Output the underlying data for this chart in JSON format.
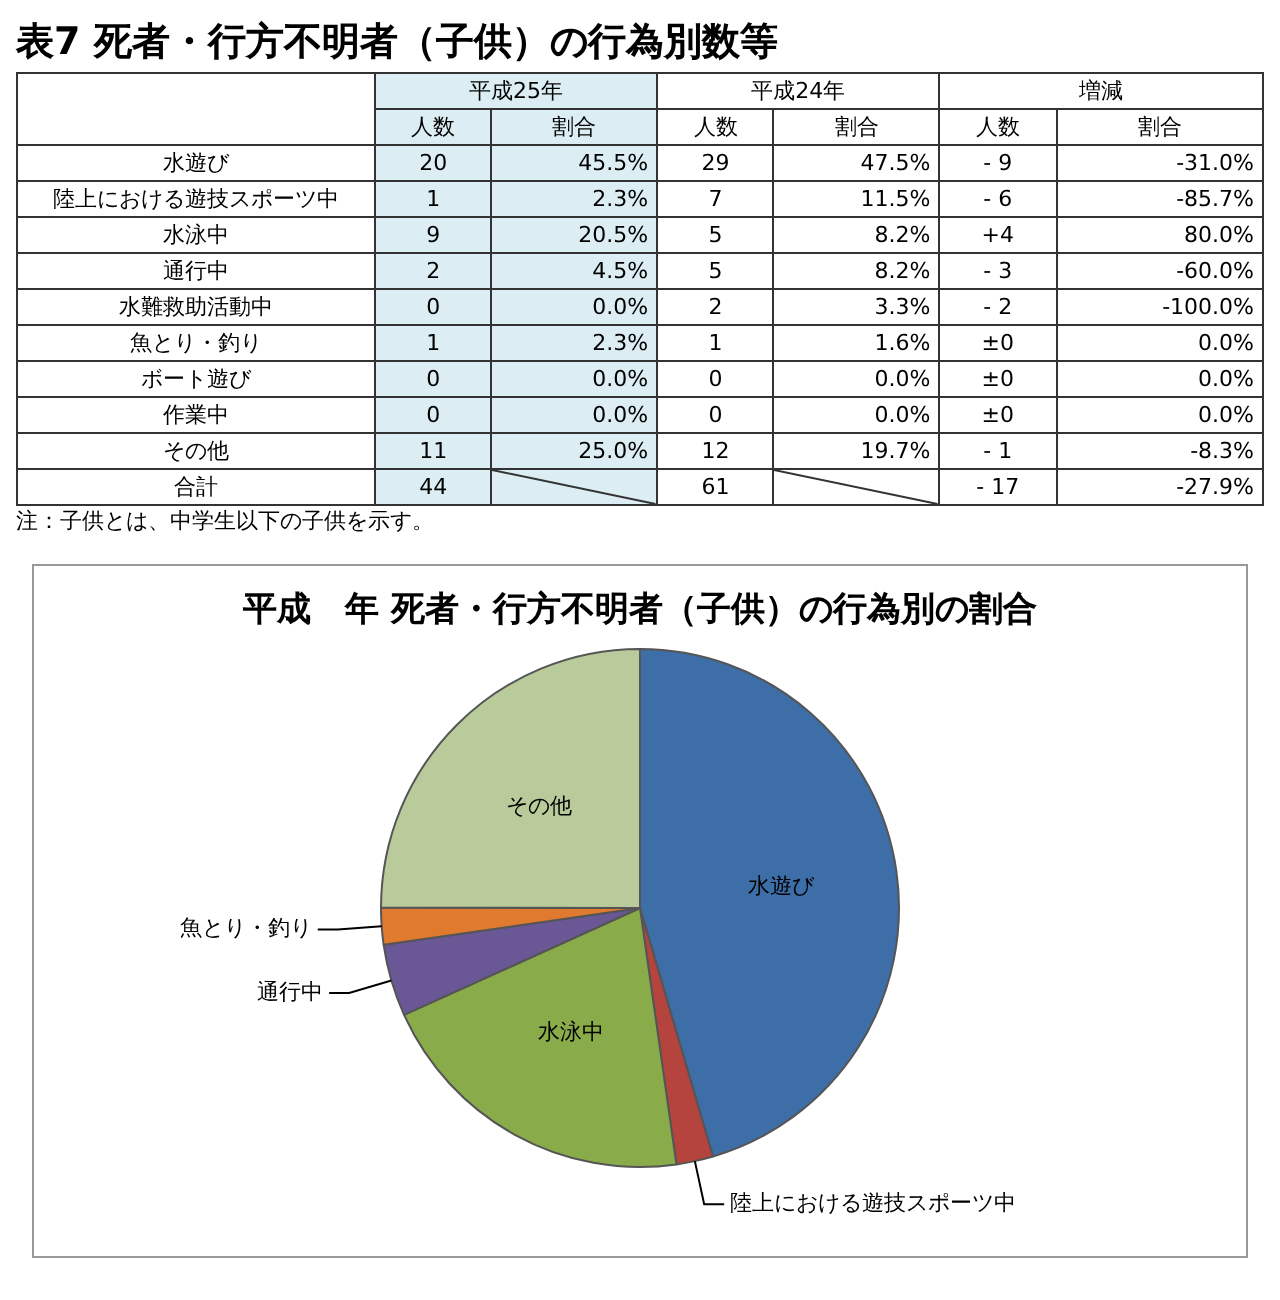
{
  "chart_data": [
    {
      "type": "other",
      "title": "表7 死者・行方不明者（子供）の行為別数等",
      "categories": [
        "水遊び",
        "陸上における遊技スポーツ中",
        "水泳中",
        "通行中",
        "水難救助活動中",
        "魚とり・釣り",
        "ボート遊び",
        "作業中",
        "その他",
        "合計"
      ],
      "data_labels": true,
      "series": [
        {
          "name": "人数",
          "values": [
            20,
            1,
            9,
            2,
            0,
            1,
            0,
            0,
            11,
            44
          ]
        },
        {
          "name": "割合",
          "values": [
            45.5,
            2.3,
            20.5,
            4.5,
            0.0,
            2.3,
            0.0,
            0.0,
            25.0,
            null
          ],
          "value_labels": [
            "45.5%",
            "2.3%",
            "20.5%",
            "4.5%",
            "0.0%",
            "2.3%",
            "0.0%",
            "0.0%",
            "25.0%",
            null
          ]
        },
        {
          "name": "人数",
          "values": [
            29,
            7,
            5,
            5,
            2,
            1,
            0,
            0,
            12,
            61
          ]
        },
        {
          "name": "割合",
          "values": [
            47.5,
            11.5,
            8.2,
            8.2,
            3.3,
            1.6,
            0.0,
            0.0,
            19.7,
            null
          ],
          "value_labels": [
            "47.5%",
            "11.5%",
            "8.2%",
            "8.2%",
            "3.3%",
            "1.6%",
            "0.0%",
            "0.0%",
            "19.7%",
            null
          ]
        },
        {
          "name": "人数",
          "values": [
            -9,
            -6,
            4,
            -3,
            -2,
            0,
            0,
            0,
            -1,
            -17
          ],
          "value_labels": [
            "- 9",
            "- 6",
            "+4",
            "- 3",
            "- 2",
            "±0",
            "±0",
            "±0",
            "- 1",
            "- 17"
          ]
        },
        {
          "name": "割合",
          "values": [
            -31.0,
            -85.7,
            80.0,
            -60.0,
            -100.0,
            0.0,
            0.0,
            0.0,
            -8.3,
            -27.9
          ],
          "value_labels": [
            "-31.0%",
            "-85.7%",
            "80.0%",
            "-60.0%",
            "-100.0%",
            "0.0%",
            "0.0%",
            "0.0%",
            "-8.3%",
            "-27.9%"
          ]
        }
      ],
      "annotations": [
        "平成25年",
        "平成24年",
        "増減",
        "注：子供とは、中学生以下の子供を示す。"
      ]
    },
    {
      "type": "pie",
      "title": "平成　年 死者・行方不明者（子供）の行為別の割合",
      "categories": [
        "水遊び",
        "陸上における遊技スポーツ中",
        "水泳中",
        "通行中",
        "魚とり・釣り",
        "その他"
      ],
      "values": [
        45.5,
        2.3,
        20.5,
        4.5,
        2.3,
        25.0
      ],
      "colors": [
        "#3e6ea8",
        "#b5443f",
        "#8aab4a",
        "#6a5896",
        "#e07a2f",
        "#b9cb9a"
      ],
      "legend": false
    }
  ]
}
